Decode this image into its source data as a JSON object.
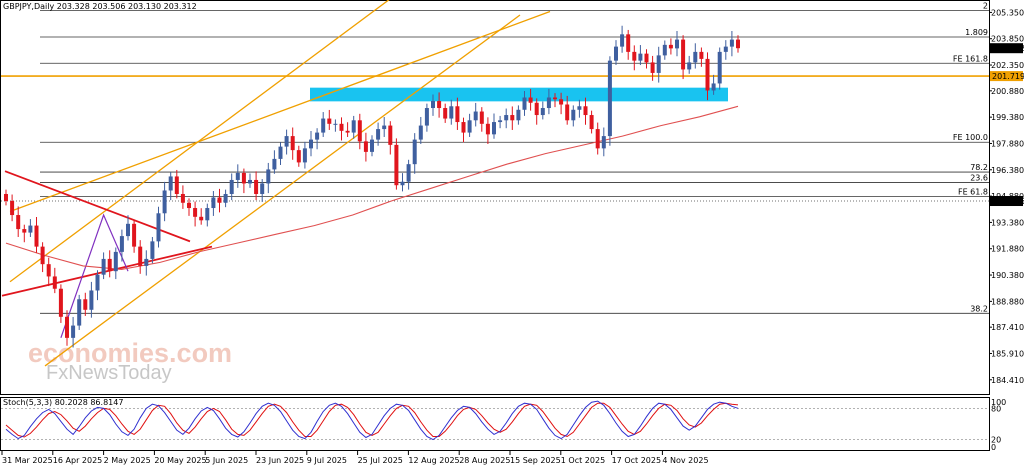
{
  "header": {
    "symbol_info": "GBPJPY,Daily  203.328 203.506 203.130 203.312",
    "stoch_info": "Stoch(5,3,3) 80.2028 86.8147"
  },
  "watermark": {
    "line1": "economies.com",
    "line2": "FxNewsToday"
  },
  "colors": {
    "bull": "#3f5f9f",
    "bear": "#e0151d",
    "ma": "#e05050",
    "channel": "#f0a000",
    "triangle": "#e0151d",
    "zone": "#19c3f0",
    "price_line_bg": "#f0a000",
    "stoch_main": "#3030d0",
    "stoch_signal": "#e01010"
  },
  "chart_data": {
    "type": "candlestick",
    "symbol": "GBPJPY",
    "timeframe": "Daily",
    "last_ohlc": {
      "open": 203.328,
      "high": 203.506,
      "low": 203.13,
      "close": 203.312
    },
    "ylim": [
      183.6,
      206.0
    ],
    "y_ticks": [
      "205.350",
      "203.850",
      "202.350",
      "200.880",
      "199.380",
      "197.880",
      "196.380",
      "194.880",
      "193.380",
      "191.880",
      "190.380",
      "188.880",
      "187.410",
      "185.910",
      "184.410"
    ],
    "x_ticks": [
      "31 Mar 2025",
      "16 Apr 2025",
      "2 May 2025",
      "20 May 2025",
      "5 Jun 2025",
      "23 Jun 2025",
      "9 Jul 2025",
      "25 Jul 2025",
      "12 Aug 2025",
      "28 Aug 2025",
      "15 Sep 2025",
      "1 Oct 2025",
      "17 Oct 2025",
      "4 Nov 2025"
    ],
    "price_label": "203.312",
    "orange_level_label": "201.719",
    "dotted_level_label": "194.596",
    "horizontal_levels": [
      {
        "label": "2",
        "value": 205.45
      },
      {
        "label": "1.809",
        "value": 203.95
      },
      {
        "label": "FE 161.8",
        "value": 202.45
      },
      {
        "label": "FE 100.0",
        "value": 197.95
      },
      {
        "label": "78.2",
        "value": 196.25
      },
      {
        "label": "23.6",
        "value": 195.65
      },
      {
        "label": "FE 61.8",
        "value": 194.85
      },
      {
        "label": "38.2",
        "value": 188.2
      }
    ],
    "zone": {
      "from": 200.28,
      "to": 201.06
    },
    "closes": [
      194.6,
      193.8,
      193.0,
      192.8,
      193.2,
      192.0,
      191.0,
      190.3,
      189.6,
      188.0,
      186.8,
      187.5,
      189.0,
      188.4,
      189.5,
      190.4,
      191.3,
      190.6,
      191.7,
      192.6,
      193.3,
      192.0,
      190.9,
      191.3,
      192.3,
      193.9,
      195.2,
      196.0,
      195.0,
      194.5,
      194.2,
      193.7,
      193.5,
      194.2,
      194.8,
      194.5,
      195.0,
      195.8,
      196.2,
      195.6,
      195.8,
      195.0,
      195.6,
      196.4,
      197.0,
      197.7,
      198.3,
      197.5,
      196.8,
      197.6,
      198.1,
      198.5,
      199.3,
      199.0,
      199.0,
      198.6,
      198.5,
      199.2,
      198.0,
      197.4,
      198.1,
      198.7,
      198.9,
      197.8,
      195.5,
      195.7,
      196.7,
      198.1,
      198.9,
      199.9,
      200.3,
      199.9,
      199.3,
      200.0,
      199.1,
      198.5,
      199.2,
      199.7,
      199.0,
      198.4,
      199.1,
      199.2,
      199.5,
      199.2,
      199.8,
      200.5,
      200.2,
      199.5,
      199.9,
      200.5,
      200.4,
      200.1,
      199.2,
      199.8,
      200.0,
      199.5,
      198.7,
      197.6,
      198.3,
      202.6,
      203.4,
      204.1,
      203.1,
      202.6,
      203.0,
      202.5,
      201.9,
      202.9,
      203.5,
      203.3,
      203.8,
      202.1,
      202.5,
      203.1,
      202.7,
      200.9,
      201.3,
      203.1,
      203.4,
      203.8,
      203.31
    ],
    "ma_values": [
      192.2,
      191.5,
      190.9,
      190.7,
      191.1,
      191.7,
      192.2,
      192.7,
      193.2,
      193.8,
      194.6,
      195.3,
      196.0,
      196.7,
      197.3,
      197.8,
      198.3,
      198.9,
      199.4,
      200.0
    ],
    "stochastic": {
      "k": [
        40,
        30,
        22,
        28,
        45,
        60,
        72,
        78,
        70,
        55,
        40,
        30,
        45,
        62,
        75,
        82,
        80,
        68,
        50,
        35,
        28,
        40,
        62,
        80,
        88,
        85,
        72,
        55,
        38,
        30,
        42,
        60,
        75,
        82,
        76,
        60,
        42,
        30,
        25,
        35,
        52,
        70,
        84,
        90,
        86,
        74,
        56,
        38,
        26,
        22,
        34,
        55,
        74,
        86,
        90,
        84,
        70,
        52,
        34,
        24,
        30,
        48,
        66,
        80,
        88,
        86,
        76,
        58,
        40,
        26,
        20,
        28,
        45,
        62,
        76,
        84,
        82,
        70,
        54,
        40,
        30,
        36,
        52,
        70,
        84,
        90,
        88,
        78,
        60,
        42,
        28,
        22,
        30,
        48,
        66,
        82,
        92,
        94,
        86,
        70,
        52,
        36,
        26,
        30,
        46,
        64,
        80,
        90,
        88,
        78,
        62,
        46,
        38,
        46,
        62,
        78,
        88,
        92,
        90,
        84,
        80.2
      ],
      "d": [
        48,
        38,
        28,
        25,
        32,
        44,
        58,
        70,
        74,
        68,
        56,
        42,
        36,
        46,
        60,
        72,
        80,
        78,
        66,
        50,
        36,
        30,
        40,
        58,
        76,
        86,
        84,
        70,
        52,
        38,
        32,
        44,
        60,
        74,
        80,
        74,
        58,
        40,
        30,
        28,
        38,
        54,
        70,
        84,
        88,
        84,
        72,
        54,
        38,
        26,
        26,
        38,
        56,
        74,
        86,
        88,
        82,
        68,
        50,
        34,
        28,
        34,
        50,
        66,
        80,
        86,
        84,
        72,
        54,
        38,
        26,
        26,
        36,
        50,
        66,
        78,
        82,
        78,
        66,
        52,
        40,
        34,
        40,
        54,
        70,
        84,
        88,
        86,
        74,
        58,
        42,
        30,
        26,
        34,
        50,
        66,
        82,
        90,
        90,
        82,
        66,
        50,
        36,
        30,
        36,
        50,
        66,
        80,
        88,
        86,
        76,
        60,
        48,
        44,
        52,
        66,
        78,
        88,
        90,
        88,
        86.8
      ],
      "ylim": [
        0,
        100
      ],
      "levels": [
        80,
        20
      ],
      "y_ticks": [
        "100",
        "80",
        "20",
        "0"
      ]
    }
  }
}
